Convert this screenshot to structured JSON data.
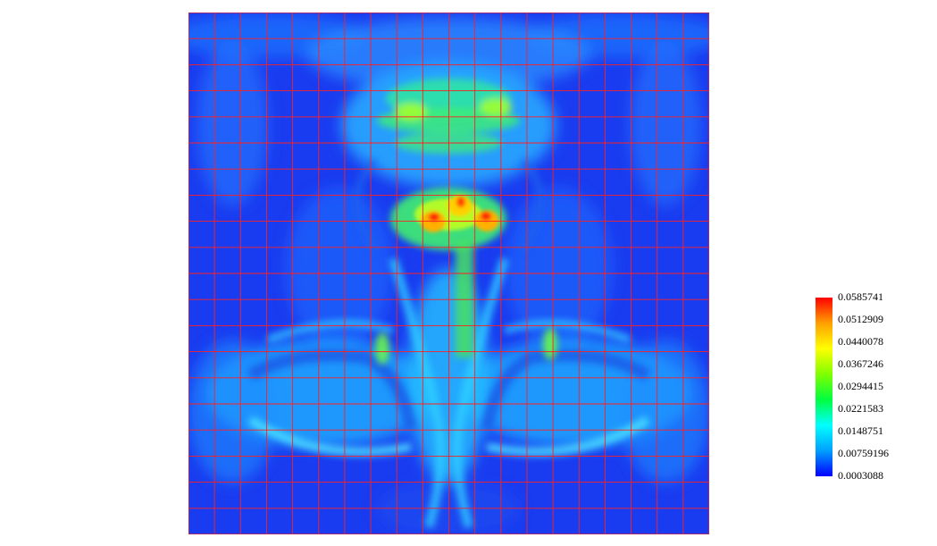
{
  "chart_data": {
    "type": "heatmap",
    "title": "",
    "xlabel": "",
    "ylabel": "",
    "colormap": "rainbow (blue-cyan-green-yellow-red)",
    "color_stops": [
      "#0000ff",
      "#00a0ff",
      "#00ffff",
      "#00ff40",
      "#80ff00",
      "#ffff00",
      "#ffa000",
      "#ff0000"
    ],
    "field_color_low": "#1a3cf0",
    "mesh_color": "#ff2020",
    "mesh_x_lines": 21,
    "mesh_y_lines": 21,
    "value_range": [
      0.0003088,
      0.0585741
    ],
    "colorbar": {
      "placement": "right",
      "tick_labels": [
        "0.0585741",
        "0.0512909",
        "0.0440078",
        "0.0367246",
        "0.0294415",
        "0.0221583",
        "0.0148751",
        "0.00759196",
        "0.0003088"
      ],
      "tick_values": [
        0.0585741,
        0.0512909,
        0.0440078,
        0.0367246,
        0.0294415,
        0.0221583,
        0.0148751,
        0.00759196,
        0.0003088
      ]
    },
    "hotspots_normalized": [
      {
        "x": 0.5,
        "y": 0.38,
        "v": 0.052
      },
      {
        "x": 0.47,
        "y": 0.39,
        "v": 0.058
      },
      {
        "x": 0.53,
        "y": 0.39,
        "v": 0.058
      },
      {
        "x": 0.5,
        "y": 0.2,
        "v": 0.028
      },
      {
        "x": 0.5,
        "y": 0.55,
        "v": 0.03
      },
      {
        "x": 0.37,
        "y": 0.65,
        "v": 0.027
      },
      {
        "x": 0.63,
        "y": 0.65,
        "v": 0.027
      }
    ]
  }
}
